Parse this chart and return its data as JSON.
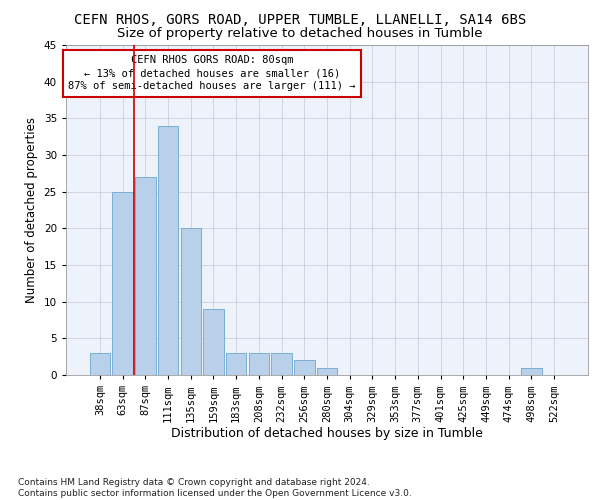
{
  "title1": "CEFN RHOS, GORS ROAD, UPPER TUMBLE, LLANELLI, SA14 6BS",
  "title2": "Size of property relative to detached houses in Tumble",
  "xlabel": "Distribution of detached houses by size in Tumble",
  "ylabel": "Number of detached properties",
  "categories": [
    "38sqm",
    "63sqm",
    "87sqm",
    "111sqm",
    "135sqm",
    "159sqm",
    "183sqm",
    "208sqm",
    "232sqm",
    "256sqm",
    "280sqm",
    "304sqm",
    "329sqm",
    "353sqm",
    "377sqm",
    "401sqm",
    "425sqm",
    "449sqm",
    "474sqm",
    "498sqm",
    "522sqm"
  ],
  "values": [
    3,
    25,
    27,
    34,
    20,
    9,
    3,
    3,
    3,
    2,
    1,
    0,
    0,
    0,
    0,
    0,
    0,
    0,
    0,
    1,
    0
  ],
  "bar_color": "#b8d0ea",
  "bar_edge_color": "#7aaed4",
  "ylim": [
    0,
    45
  ],
  "yticks": [
    0,
    5,
    10,
    15,
    20,
    25,
    30,
    35,
    40,
    45
  ],
  "vline_x": 1.5,
  "vline_color": "#cc0000",
  "annotation_line1": "CEFN RHOS GORS ROAD: 80sqm",
  "annotation_line2": "← 13% of detached houses are smaller (16)",
  "annotation_line3": "87% of semi-detached houses are larger (111) →",
  "annotation_box_color": "#cc0000",
  "footnote": "Contains HM Land Registry data © Crown copyright and database right 2024.\nContains public sector information licensed under the Open Government Licence v3.0.",
  "background_color": "#eef2fb",
  "grid_color": "#c8c8d8",
  "title1_fontsize": 10,
  "title2_fontsize": 9.5,
  "xlabel_fontsize": 9,
  "ylabel_fontsize": 8.5,
  "tick_fontsize": 7.5,
  "footnote_fontsize": 6.5
}
